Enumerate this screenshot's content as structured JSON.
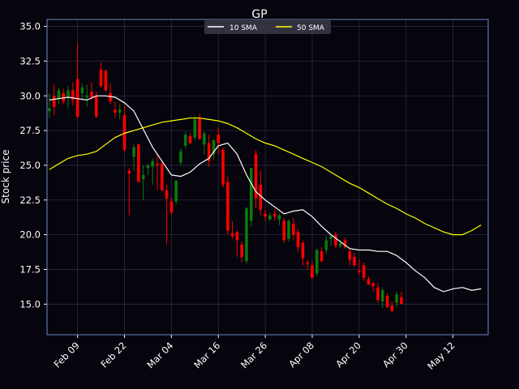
{
  "chart_data": {
    "type": "candlestick",
    "title": "GP",
    "xlabel": "",
    "ylabel": "Stock price",
    "ylim": [
      12.8,
      35.5
    ],
    "yticks": [
      15.0,
      17.5,
      20.0,
      22.5,
      25.0,
      27.5,
      30.0,
      32.5,
      35.0
    ],
    "xticks": [
      {
        "x": 6,
        "label": "Feb 09"
      },
      {
        "x": 16,
        "label": "Feb 22"
      },
      {
        "x": 26,
        "label": "Mar 04"
      },
      {
        "x": 36,
        "label": "Mar 16"
      },
      {
        "x": 46,
        "label": "Mar 26"
      },
      {
        "x": 56,
        "label": "Apr 08"
      },
      {
        "x": 66,
        "label": "Apr 20"
      },
      {
        "x": 76,
        "label": "Apr 30"
      },
      {
        "x": 86,
        "label": "May 12"
      }
    ],
    "xlim": [
      -0.5,
      93.5
    ],
    "grid": true,
    "legend": {
      "position": "top-center",
      "entries": [
        "10 SMA",
        "50 SMA"
      ]
    },
    "colors": {
      "background": "#06040c",
      "frame": "#6a8ccc",
      "grid": "#2c2a48",
      "up": "#0a7a0a",
      "down": "#ff0000",
      "sma10": "#ffffff",
      "sma50": "#ffff00",
      "text": "#ffffff"
    },
    "candles": [
      [
        28.9,
        30.2,
        28.4,
        29.1
      ],
      [
        30.0,
        30.8,
        28.6,
        29.2
      ],
      [
        29.8,
        30.6,
        29.4,
        30.4
      ],
      [
        30.2,
        30.5,
        29.4,
        29.6
      ],
      [
        29.9,
        30.7,
        29.1,
        30.4
      ],
      [
        30.4,
        31.0,
        29.3,
        29.7
      ],
      [
        31.2,
        33.8,
        28.4,
        28.5
      ],
      [
        30.2,
        30.9,
        29.8,
        30.6
      ],
      [
        29.9,
        30.8,
        29.2,
        30.0
      ],
      [
        30.3,
        31.0,
        29.7,
        29.9
      ],
      [
        30.0,
        30.3,
        28.4,
        28.5
      ],
      [
        31.9,
        32.4,
        30.6,
        30.7
      ],
      [
        31.8,
        31.9,
        30.3,
        30.4
      ],
      [
        30.2,
        30.9,
        29.4,
        29.6
      ],
      [
        29.0,
        29.6,
        28.4,
        28.8
      ],
      [
        28.8,
        29.4,
        28.3,
        29.0
      ],
      [
        28.6,
        29.3,
        26.0,
        26.1
      ],
      [
        24.6,
        24.8,
        21.4,
        24.4
      ],
      [
        25.6,
        26.5,
        24.6,
        26.3
      ],
      [
        26.5,
        26.6,
        23.9,
        23.8
      ],
      [
        24.0,
        25.0,
        22.5,
        24.3
      ],
      [
        24.8,
        25.1,
        24.3,
        25.0
      ],
      [
        24.9,
        25.5,
        23.6,
        25.3
      ],
      [
        25.1,
        25.8,
        23.2,
        25.0
      ],
      [
        25.1,
        25.3,
        23.1,
        23.2
      ],
      [
        23.2,
        23.6,
        19.3,
        22.6
      ],
      [
        22.4,
        22.7,
        21.4,
        21.6
      ],
      [
        22.4,
        23.9,
        22.2,
        23.9
      ],
      [
        25.2,
        26.2,
        25.0,
        26.0
      ],
      [
        26.4,
        27.4,
        26.2,
        27.2
      ],
      [
        27.1,
        27.3,
        26.5,
        26.6
      ],
      [
        27.0,
        28.6,
        26.8,
        28.3
      ],
      [
        28.4,
        28.7,
        26.8,
        26.9
      ],
      [
        26.5,
        27.4,
        25.8,
        27.3
      ],
      [
        26.6,
        27.2,
        24.9,
        25.3
      ],
      [
        25.8,
        26.9,
        25.4,
        26.8
      ],
      [
        27.2,
        27.7,
        25.8,
        26.6
      ],
      [
        26.1,
        26.3,
        23.4,
        23.6
      ],
      [
        23.8,
        24.2,
        20.0,
        20.3
      ],
      [
        20.1,
        21.0,
        19.7,
        19.9
      ],
      [
        20.2,
        20.3,
        18.4,
        19.6
      ],
      [
        19.3,
        19.5,
        18.0,
        18.4
      ],
      [
        18.1,
        22.0,
        17.9,
        21.9
      ],
      [
        21.0,
        24.8,
        20.6,
        24.8
      ],
      [
        25.8,
        26.1,
        21.9,
        22.6
      ],
      [
        23.6,
        24.6,
        21.4,
        21.8
      ],
      [
        21.5,
        21.8,
        21.0,
        21.3
      ],
      [
        21.1,
        21.6,
        21.0,
        21.4
      ],
      [
        21.5,
        21.8,
        21.0,
        21.3
      ],
      [
        21.1,
        21.5,
        20.7,
        21.4
      ],
      [
        21.0,
        21.2,
        19.4,
        19.6
      ],
      [
        19.7,
        21.1,
        19.5,
        21.0
      ],
      [
        20.8,
        21.2,
        19.6,
        20.0
      ],
      [
        20.2,
        20.4,
        18.8,
        19.1
      ],
      [
        19.4,
        19.6,
        17.8,
        18.3
      ],
      [
        18.0,
        18.2,
        17.5,
        17.9
      ],
      [
        17.8,
        18.1,
        16.8,
        16.9
      ],
      [
        17.2,
        19.0,
        17.0,
        18.9
      ],
      [
        18.8,
        19.1,
        18.0,
        18.1
      ],
      [
        18.9,
        19.9,
        18.6,
        19.6
      ],
      [
        19.7,
        19.9,
        19.2,
        19.9
      ],
      [
        20.0,
        20.2,
        19.0,
        19.2
      ],
      [
        19.2,
        19.6,
        19.0,
        19.4
      ],
      [
        19.6,
        19.8,
        19.0,
        19.1
      ],
      [
        18.8,
        19.1,
        17.8,
        18.2
      ],
      [
        18.4,
        18.7,
        17.7,
        17.8
      ],
      [
        17.4,
        18.2,
        17.1,
        17.3
      ],
      [
        17.8,
        18.0,
        16.7,
        16.9
      ],
      [
        16.8,
        17.0,
        16.4,
        16.4
      ],
      [
        16.5,
        16.6,
        15.9,
        16.3
      ],
      [
        16.2,
        16.5,
        15.1,
        15.3
      ],
      [
        15.2,
        16.2,
        14.7,
        16.0
      ],
      [
        15.6,
        15.8,
        14.7,
        14.8
      ],
      [
        14.9,
        15.2,
        14.4,
        14.5
      ],
      [
        15.1,
        15.9,
        14.8,
        15.7
      ],
      [
        15.5,
        15.9,
        15.0,
        15.0
      ]
    ],
    "series": [
      {
        "name": "10 SMA",
        "x": [
          0,
          2,
          4,
          6,
          8,
          10,
          12,
          14,
          16,
          18,
          20,
          22,
          24,
          26,
          28,
          30,
          32,
          34,
          36,
          38,
          40,
          42,
          44,
          46,
          48,
          50,
          52,
          54,
          56,
          58,
          60,
          62,
          64,
          66,
          68,
          70,
          72,
          74,
          76,
          78,
          80,
          82,
          84,
          86,
          88,
          90,
          92
        ],
        "y": [
          29.7,
          29.8,
          29.9,
          29.8,
          29.7,
          30.0,
          30.0,
          29.9,
          29.5,
          28.9,
          27.6,
          26.3,
          25.3,
          24.3,
          24.2,
          24.5,
          25.1,
          25.5,
          26.4,
          26.6,
          25.8,
          24.3,
          23.1,
          22.5,
          22.0,
          21.5,
          21.7,
          21.8,
          21.3,
          20.6,
          20.0,
          19.5,
          19.0,
          18.9,
          18.9,
          18.8,
          18.8,
          18.5,
          18.0,
          17.4,
          16.9,
          16.2,
          15.9,
          16.1,
          16.2,
          16.0,
          16.1
        ]
      },
      {
        "name": "50 SMA",
        "x": [
          0,
          2,
          4,
          6,
          8,
          10,
          12,
          14,
          16,
          18,
          20,
          22,
          24,
          26,
          28,
          30,
          32,
          34,
          36,
          38,
          40,
          42,
          44,
          46,
          48,
          50,
          52,
          54,
          56,
          58,
          60,
          62,
          64,
          66,
          68,
          70,
          72,
          74,
          76,
          78,
          80,
          82,
          84,
          86,
          88,
          90,
          92
        ],
        "y": [
          24.7,
          25.1,
          25.5,
          25.7,
          25.8,
          26.0,
          26.5,
          27.0,
          27.3,
          27.5,
          27.7,
          27.9,
          28.1,
          28.2,
          28.3,
          28.4,
          28.4,
          28.3,
          28.2,
          28.0,
          27.7,
          27.3,
          26.9,
          26.6,
          26.4,
          26.1,
          25.8,
          25.5,
          25.2,
          24.9,
          24.5,
          24.1,
          23.7,
          23.4,
          23.0,
          22.6,
          22.2,
          21.9,
          21.5,
          21.2,
          20.8,
          20.5,
          20.2,
          20.0,
          20.0,
          20.3,
          20.7
        ]
      }
    ]
  }
}
